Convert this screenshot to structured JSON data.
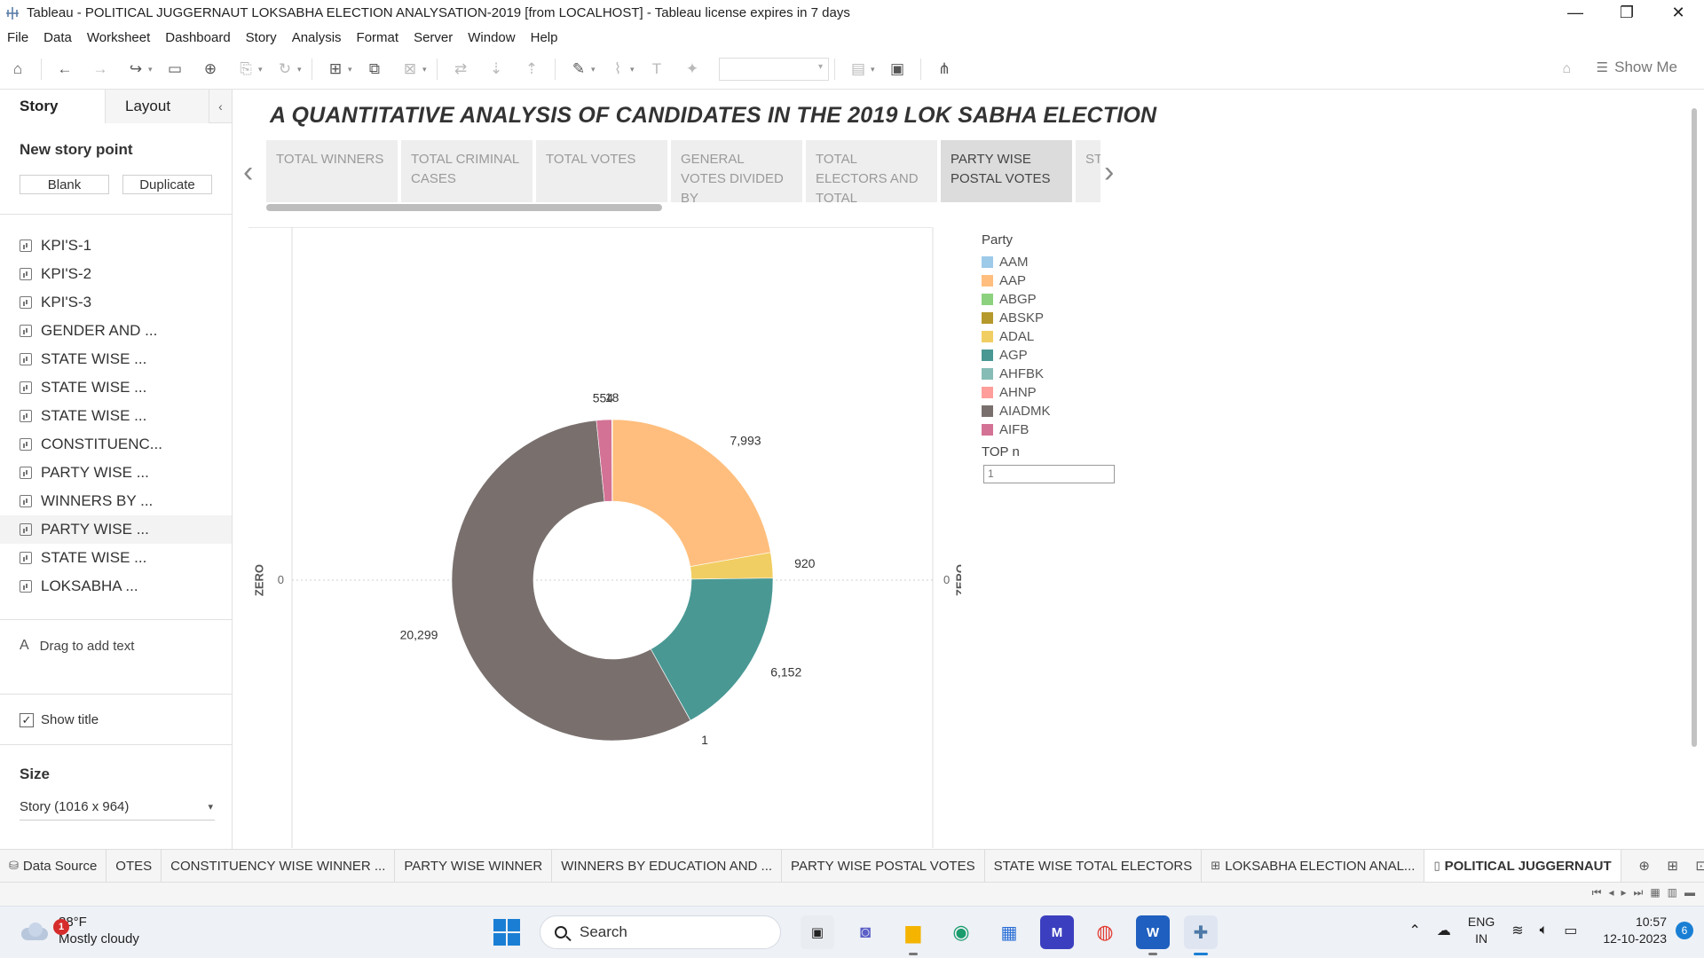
{
  "window": {
    "title": "Tableau - POLITICAL JUGGERNAUT LOKSABHA ELECTION ANALYSATION-2019 [from LOCALHOST] - Tableau license expires in 7 days",
    "controls": [
      "—",
      "❐",
      "✕"
    ]
  },
  "menu": [
    "File",
    "Data",
    "Worksheet",
    "Dashboard",
    "Story",
    "Analysis",
    "Format",
    "Server",
    "Window",
    "Help"
  ],
  "toolbar": {
    "show_me": "Show Me"
  },
  "left_pane": {
    "tabs": [
      "Story",
      "Layout"
    ],
    "collapse_icon": "‹",
    "new_story_point": "New story point",
    "blank_label": "Blank",
    "duplicate_label": "Duplicate",
    "story_items": [
      "KPI'S-1",
      "KPI'S-2",
      "KPI'S-3",
      "GENDER AND ...",
      "STATE WISE ...",
      "STATE WISE ...",
      "STATE WISE ...",
      "CONSTITUENC...",
      "PARTY WISE ...",
      "WINNERS BY ...",
      "PARTY WISE ...",
      "STATE WISE ...",
      "LOKSABHA ..."
    ],
    "drag_text": "Drag to add text",
    "show_title": "Show title",
    "size_heading": "Size",
    "size_value": "Story (1016 x 964)"
  },
  "story": {
    "title": "A QUANTITATIVE ANALYSIS OF CANDIDATES IN THE 2019 LOK SABHA ELECTION",
    "points": [
      "TOTAL WINNERS",
      "TOTAL CRIMINAL CASES",
      "TOTAL VOTES",
      "GENERAL VOTES DIVIDED BY",
      "TOTAL ELECTORS AND TOTAL",
      "PARTY WISE POSTAL VOTES",
      "ST W"
    ],
    "active_point": 5
  },
  "chart_data": {
    "type": "pie",
    "donut": true,
    "categories": [
      "AAM",
      "AAP",
      "ABGP",
      "ABSKP",
      "ADAL",
      "AGP",
      "AHFBK",
      "AHNP",
      "AIADMK",
      "AIFB"
    ],
    "values": [
      18,
      7993,
      0,
      0,
      920,
      6152,
      1,
      0,
      20299,
      554
    ],
    "data_labels": [
      "18",
      "7,993",
      "",
      "",
      "920",
      "6,152",
      "1",
      "",
      "20,299",
      "554"
    ],
    "colors": [
      "#9ecae9",
      "#ffbe7d",
      "#8cd17d",
      "#b6992d",
      "#f1ce63",
      "#499894",
      "#86bcb6",
      "#ff9d9a",
      "#79706e",
      "#d37295"
    ],
    "axis_left": {
      "label": "ZERO",
      "tick": "0"
    },
    "axis_right": {
      "label": "ZERO",
      "tick": "0"
    },
    "legend_title": "Party",
    "legend_placement": "right"
  },
  "filter": {
    "title": "TOP n",
    "value": "1"
  },
  "sheet_tabs": [
    "Data Source",
    "OTES",
    "CONSTITUENCY WISE WINNER ...",
    "PARTY WISE WINNER",
    "WINNERS BY EDUCATION AND ...",
    "PARTY WISE POSTAL VOTES",
    "STATE WISE TOTAL ELECTORS",
    "LOKSABHA ELECTION ANAL...",
    "POLITICAL JUGGERNAUT"
  ],
  "taskbar": {
    "weather_badge": "1",
    "temperature": "88°F",
    "weather": "Mostly cloudy",
    "search": "Search",
    "lang_1": "ENG",
    "lang_2": "IN",
    "time": "10:57",
    "date": "12-10-2023",
    "notifications": "6"
  }
}
